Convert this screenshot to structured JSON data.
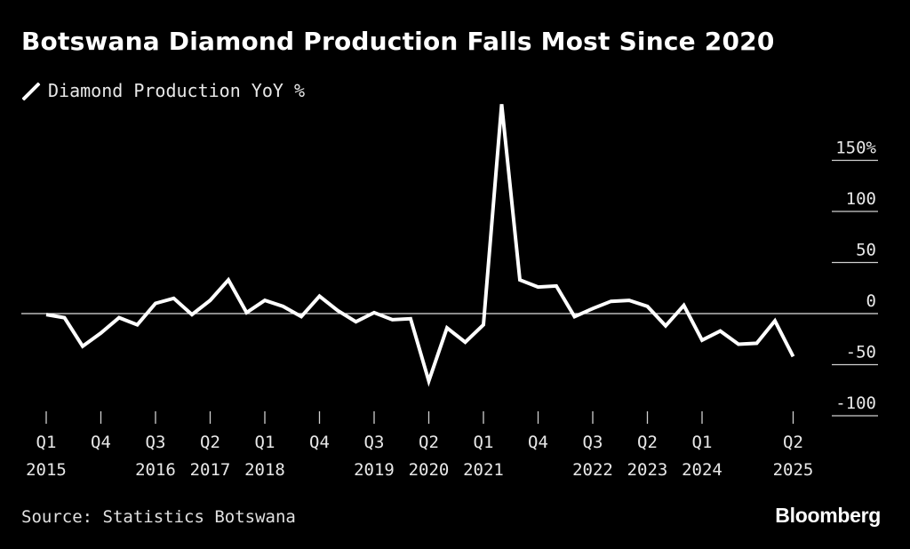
{
  "title": "Botswana Diamond Production Falls Most Since 2020",
  "source": "Source: Statistics Botswana",
  "brand": "Bloomberg",
  "colors": {
    "background": "#000000",
    "line": "#ffffff",
    "text": "#e8e8e8"
  },
  "chart_data": {
    "type": "line",
    "title": "Botswana Diamond Production Falls Most Since 2020",
    "xlabel": "",
    "ylabel": "",
    "ylim": [
      -100,
      150
    ],
    "grid": false,
    "legend_position": "top-left",
    "y_ticks": [
      {
        "value": 150,
        "label": "150%"
      },
      {
        "value": 100,
        "label": "100"
      },
      {
        "value": 50,
        "label": "50"
      },
      {
        "value": 0,
        "label": "0"
      },
      {
        "value": -50,
        "label": "-50"
      },
      {
        "value": -100,
        "label": "-100"
      }
    ],
    "x_ticks": [
      {
        "x": "2015 Q1",
        "quarter": "Q1",
        "year": "2015"
      },
      {
        "x": "2015 Q4",
        "quarter": "Q4",
        "year": ""
      },
      {
        "x": "2016 Q3",
        "quarter": "Q3",
        "year": "2016"
      },
      {
        "x": "2017 Q2",
        "quarter": "Q2",
        "year": "2017"
      },
      {
        "x": "2018 Q1",
        "quarter": "Q1",
        "year": "2018"
      },
      {
        "x": "2018 Q4",
        "quarter": "Q4",
        "year": ""
      },
      {
        "x": "2019 Q3",
        "quarter": "Q3",
        "year": "2019"
      },
      {
        "x": "2020 Q2",
        "quarter": "Q2",
        "year": "2020"
      },
      {
        "x": "2021 Q1",
        "quarter": "Q1",
        "year": "2021"
      },
      {
        "x": "2021 Q4",
        "quarter": "Q4",
        "year": ""
      },
      {
        "x": "2022 Q3",
        "quarter": "Q3",
        "year": "2022"
      },
      {
        "x": "2023 Q2",
        "quarter": "Q2",
        "year": "2023"
      },
      {
        "x": "2024 Q1",
        "quarter": "Q1",
        "year": "2024"
      },
      {
        "x": "2025 Q2",
        "quarter": "Q2",
        "year": "2025"
      }
    ],
    "series": [
      {
        "name": "Diamond Production YoY %",
        "color": "#ffffff",
        "points": [
          {
            "x": "2015 Q1",
            "y": -1
          },
          {
            "x": "2015 Q2",
            "y": -4
          },
          {
            "x": "2015 Q3",
            "y": -32
          },
          {
            "x": "2015 Q4",
            "y": -19
          },
          {
            "x": "2016 Q1",
            "y": -4
          },
          {
            "x": "2016 Q2",
            "y": -11
          },
          {
            "x": "2016 Q3",
            "y": 10
          },
          {
            "x": "2016 Q4",
            "y": 15
          },
          {
            "x": "2017 Q1",
            "y": -1
          },
          {
            "x": "2017 Q2",
            "y": 13
          },
          {
            "x": "2017 Q3",
            "y": 33
          },
          {
            "x": "2017 Q4",
            "y": 1
          },
          {
            "x": "2018 Q1",
            "y": 13
          },
          {
            "x": "2018 Q2",
            "y": 7
          },
          {
            "x": "2018 Q3",
            "y": -3
          },
          {
            "x": "2018 Q4",
            "y": 17
          },
          {
            "x": "2019 Q1",
            "y": 3
          },
          {
            "x": "2019 Q2",
            "y": -8
          },
          {
            "x": "2019 Q3",
            "y": 1
          },
          {
            "x": "2019 Q4",
            "y": -6
          },
          {
            "x": "2020 Q1",
            "y": -5
          },
          {
            "x": "2020 Q2",
            "y": -66
          },
          {
            "x": "2020 Q3",
            "y": -14
          },
          {
            "x": "2020 Q4",
            "y": -28
          },
          {
            "x": "2021 Q1",
            "y": -11
          },
          {
            "x": "2021 Q2",
            "y": 205
          },
          {
            "x": "2021 Q3",
            "y": 33
          },
          {
            "x": "2021 Q4",
            "y": 26
          },
          {
            "x": "2022 Q1",
            "y": 27
          },
          {
            "x": "2022 Q2",
            "y": -3
          },
          {
            "x": "2022 Q3",
            "y": 5
          },
          {
            "x": "2022 Q4",
            "y": 12
          },
          {
            "x": "2023 Q1",
            "y": 13
          },
          {
            "x": "2023 Q2",
            "y": 7
          },
          {
            "x": "2023 Q3",
            "y": -12
          },
          {
            "x": "2023 Q4",
            "y": 8
          },
          {
            "x": "2024 Q1",
            "y": -26
          },
          {
            "x": "2024 Q2",
            "y": -17
          },
          {
            "x": "2024 Q3",
            "y": -30
          },
          {
            "x": "2024 Q4",
            "y": -29
          },
          {
            "x": "2025 Q1",
            "y": -7
          },
          {
            "x": "2025 Q2",
            "y": -42
          }
        ]
      }
    ]
  }
}
